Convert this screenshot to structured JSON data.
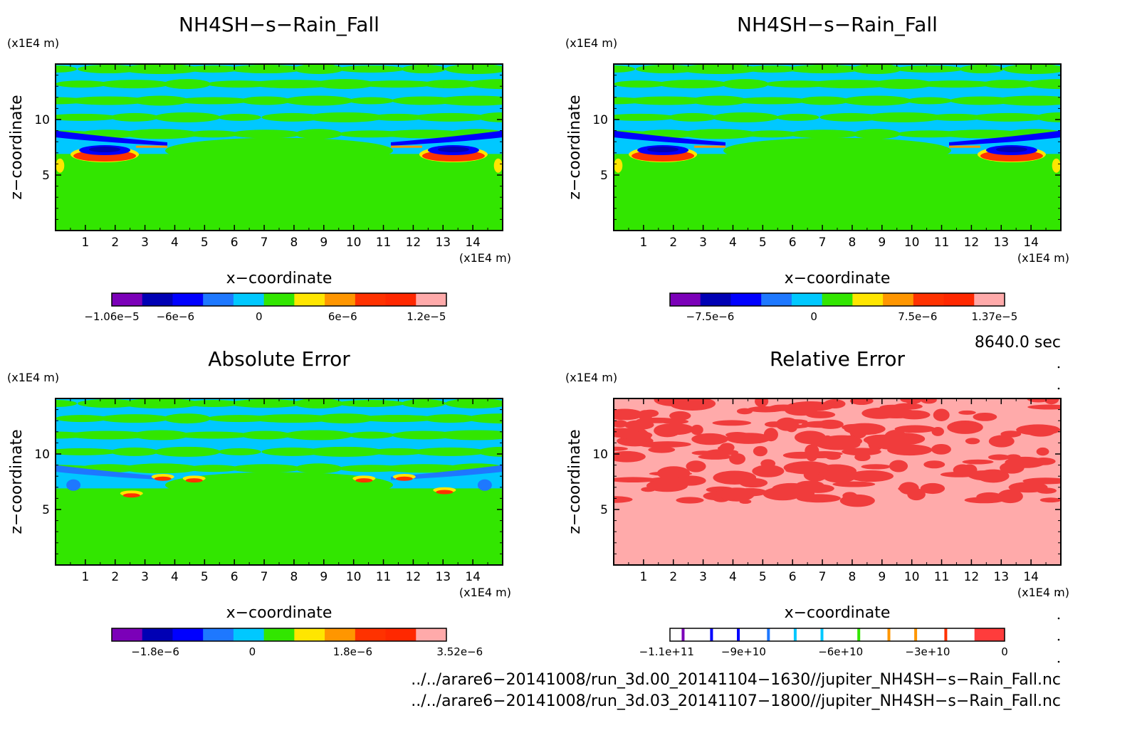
{
  "chart_data": [
    {
      "type": "heatmap",
      "title": "NH4SH−s−Rain_Fall",
      "xlabel": "x−coordinate",
      "ylabel": "z−coordinate",
      "x_unit": "(x1E4 m)",
      "y_unit": "(x1E4 m)",
      "xlim": [
        0,
        15
      ],
      "ylim": [
        0,
        15
      ],
      "x_ticks": [
        "1",
        "2",
        "3",
        "4",
        "5",
        "6",
        "7",
        "8",
        "9",
        "10",
        "11",
        "12",
        "13",
        "14"
      ],
      "y_ticks": [
        "5",
        "10"
      ],
      "colorbar": {
        "colors": [
          "#7b00b8",
          "#0000b4",
          "#0000ff",
          "#1e78ff",
          "#00c8ff",
          "#32e600",
          "#ffe600",
          "#ff9600",
          "#ff3200",
          "#ff2800",
          "#ffaaaa"
        ],
        "tick_labels": [
          "−1.06e−5",
          "−6e−6",
          "0",
          "6e−6",
          "1.2e−5"
        ]
      }
    },
    {
      "type": "heatmap",
      "title": "NH4SH−s−Rain_Fall",
      "xlabel": "x−coordinate",
      "ylabel": "z−coordinate",
      "x_unit": "(x1E4 m)",
      "y_unit": "(x1E4 m)",
      "xlim": [
        0,
        15
      ],
      "ylim": [
        0,
        15
      ],
      "x_ticks": [
        "1",
        "2",
        "3",
        "4",
        "5",
        "6",
        "7",
        "8",
        "9",
        "10",
        "11",
        "12",
        "13",
        "14"
      ],
      "y_ticks": [
        "5",
        "10"
      ],
      "colorbar": {
        "colors": [
          "#7b00b8",
          "#0000b4",
          "#0000ff",
          "#1e78ff",
          "#00c8ff",
          "#32e600",
          "#ffe600",
          "#ff9600",
          "#ff3200",
          "#ff2800",
          "#ffaaaa"
        ],
        "tick_labels": [
          "−7.5e−6",
          "0",
          "7.5e−6",
          "1.37e−5"
        ]
      }
    },
    {
      "type": "heatmap",
      "title": "Absolute Error",
      "xlabel": "x−coordinate",
      "ylabel": "z−coordinate",
      "x_unit": "(x1E4 m)",
      "y_unit": "(x1E4 m)",
      "xlim": [
        0,
        15
      ],
      "ylim": [
        0,
        15
      ],
      "x_ticks": [
        "1",
        "2",
        "3",
        "4",
        "5",
        "6",
        "7",
        "8",
        "9",
        "10",
        "11",
        "12",
        "13",
        "14"
      ],
      "y_ticks": [
        "5",
        "10"
      ],
      "colorbar": {
        "colors": [
          "#7b00b8",
          "#0000b4",
          "#0000ff",
          "#1e78ff",
          "#00c8ff",
          "#32e600",
          "#ffe600",
          "#ff9600",
          "#ff3200",
          "#ff2800",
          "#ffaaaa"
        ],
        "tick_labels": [
          "−1.8e−6",
          "0",
          "1.8e−6",
          "3.52e−6"
        ]
      }
    },
    {
      "type": "heatmap",
      "title": "Relative Error",
      "xlabel": "x−coordinate",
      "ylabel": "z−coordinate",
      "x_unit": "(x1E4 m)",
      "y_unit": "(x1E4 m)",
      "xlim": [
        0,
        15
      ],
      "ylim": [
        0,
        15
      ],
      "x_ticks": [
        "1",
        "2",
        "3",
        "4",
        "5",
        "6",
        "7",
        "8",
        "9",
        "10",
        "11",
        "12",
        "13",
        "14"
      ],
      "y_ticks": [
        "5",
        "10"
      ],
      "colorbar": {
        "colors": [
          "#7b00b8",
          "#0000ff",
          "#1e78ff",
          "#00c8ff",
          "#32e600",
          "#ff9600",
          "#ff9600",
          "#ff3200",
          "#ff3232"
        ],
        "tick_labels": [
          "−1.1e+11",
          "−9e+10",
          "−6e+10",
          "−3e+10",
          "0"
        ]
      }
    }
  ],
  "time_label": "8640.0 sec",
  "footer": [
    "../../arare6−20141008/run_3d.00_20141104−1630//jupiter_NH4SH−s−Rain_Fall.nc",
    "../../arare6−20141008/run_3d.03_20141107−1800//jupiter_NH4SH−s−Rain_Fall.nc"
  ],
  "palette": {
    "green": "#32e600",
    "cyan": "#00c8ff",
    "midblue": "#1e78ff",
    "blue": "#0000ff",
    "darkblue": "#0000b4",
    "yellow": "#ffe600",
    "orange": "#ff9600",
    "red": "#ff3200",
    "pink": "#ffaaaa",
    "relred": "#f03c3c"
  }
}
